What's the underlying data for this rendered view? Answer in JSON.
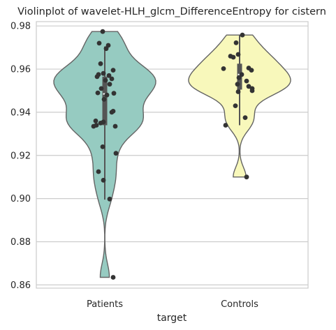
{
  "chart_data": {
    "type": "violin",
    "title": "Violinplot of wavelet-HLH_glcm_DifferenceEntropy for cistern",
    "xlabel": "target",
    "ylabel": "",
    "categories": [
      "Patients",
      "Controls"
    ],
    "ylim": [
      0.8585,
      0.982
    ],
    "yticks": [
      0.86,
      0.88,
      0.9,
      0.92,
      0.94,
      0.96,
      0.98
    ],
    "ytick_labels": [
      "0.86",
      "0.88",
      "0.90",
      "0.92",
      "0.94",
      "0.96",
      "0.98"
    ],
    "grid": "horizontal",
    "colors": {
      "Patients": "#96cbc1",
      "Controls": "#f8f8bb",
      "outline": "#646464",
      "points": "#333333",
      "grid": "#cccccc"
    },
    "series": [
      {
        "category": "Patients",
        "range": [
          0.8635,
          0.9774
        ],
        "quartiles": [
          0.934,
          0.9485,
          0.9565
        ],
        "whiskers": [
          0.8995,
          0.9705
        ],
        "points": [
          [
            -0.03,
            0.9774
          ],
          [
            -0.08,
            0.972
          ],
          [
            0.05,
            0.971
          ],
          [
            0.02,
            0.9695
          ],
          [
            -0.06,
            0.9625
          ],
          [
            0.12,
            0.9595
          ],
          [
            -0.02,
            0.958
          ],
          [
            -0.09,
            0.9575
          ],
          [
            0.06,
            0.957
          ],
          [
            -0.11,
            0.9565
          ],
          [
            0.1,
            0.9555
          ],
          [
            0.01,
            0.9548
          ],
          [
            0.07,
            0.953
          ],
          [
            -0.05,
            0.951
          ],
          [
            0.13,
            0.9488
          ],
          [
            -0.1,
            0.949
          ],
          [
            0.03,
            0.948
          ],
          [
            -0.01,
            0.946
          ],
          [
            0.12,
            0.9405
          ],
          [
            0.1,
            0.94
          ],
          [
            -0.13,
            0.936
          ],
          [
            -0.02,
            0.9355
          ],
          [
            -0.06,
            0.935
          ],
          [
            0.15,
            0.9335
          ],
          [
            -0.12,
            0.934
          ],
          [
            -0.16,
            0.9335
          ],
          [
            -0.03,
            0.924
          ],
          [
            0.16,
            0.921
          ],
          [
            -0.09,
            0.9125
          ],
          [
            -0.02,
            0.9085
          ],
          [
            0.07,
            0.8998
          ],
          [
            0.12,
            0.8635
          ]
        ]
      },
      {
        "category": "Controls",
        "range": [
          0.91,
          0.9758
        ],
        "quartiles": [
          0.9505,
          0.9575,
          0.9625
        ],
        "whiskers": [
          0.934,
          0.9758
        ],
        "points": [
          [
            0.04,
            0.9758
          ],
          [
            -0.05,
            0.9722
          ],
          [
            -0.02,
            0.9668
          ],
          [
            -0.13,
            0.966
          ],
          [
            -0.09,
            0.9655
          ],
          [
            0.13,
            0.9605
          ],
          [
            -0.23,
            0.9602
          ],
          [
            0.17,
            0.9595
          ],
          [
            0.03,
            0.9575
          ],
          [
            -0.01,
            0.956
          ],
          [
            0.1,
            0.9545
          ],
          [
            -0.03,
            0.953
          ],
          [
            0.13,
            0.952
          ],
          [
            0.18,
            0.951
          ],
          [
            0.18,
            0.95
          ],
          [
            -0.02,
            0.9495
          ],
          [
            -0.06,
            0.943
          ],
          [
            0.08,
            0.9375
          ],
          [
            -0.2,
            0.934
          ],
          [
            0.1,
            0.91
          ]
        ]
      }
    ]
  }
}
